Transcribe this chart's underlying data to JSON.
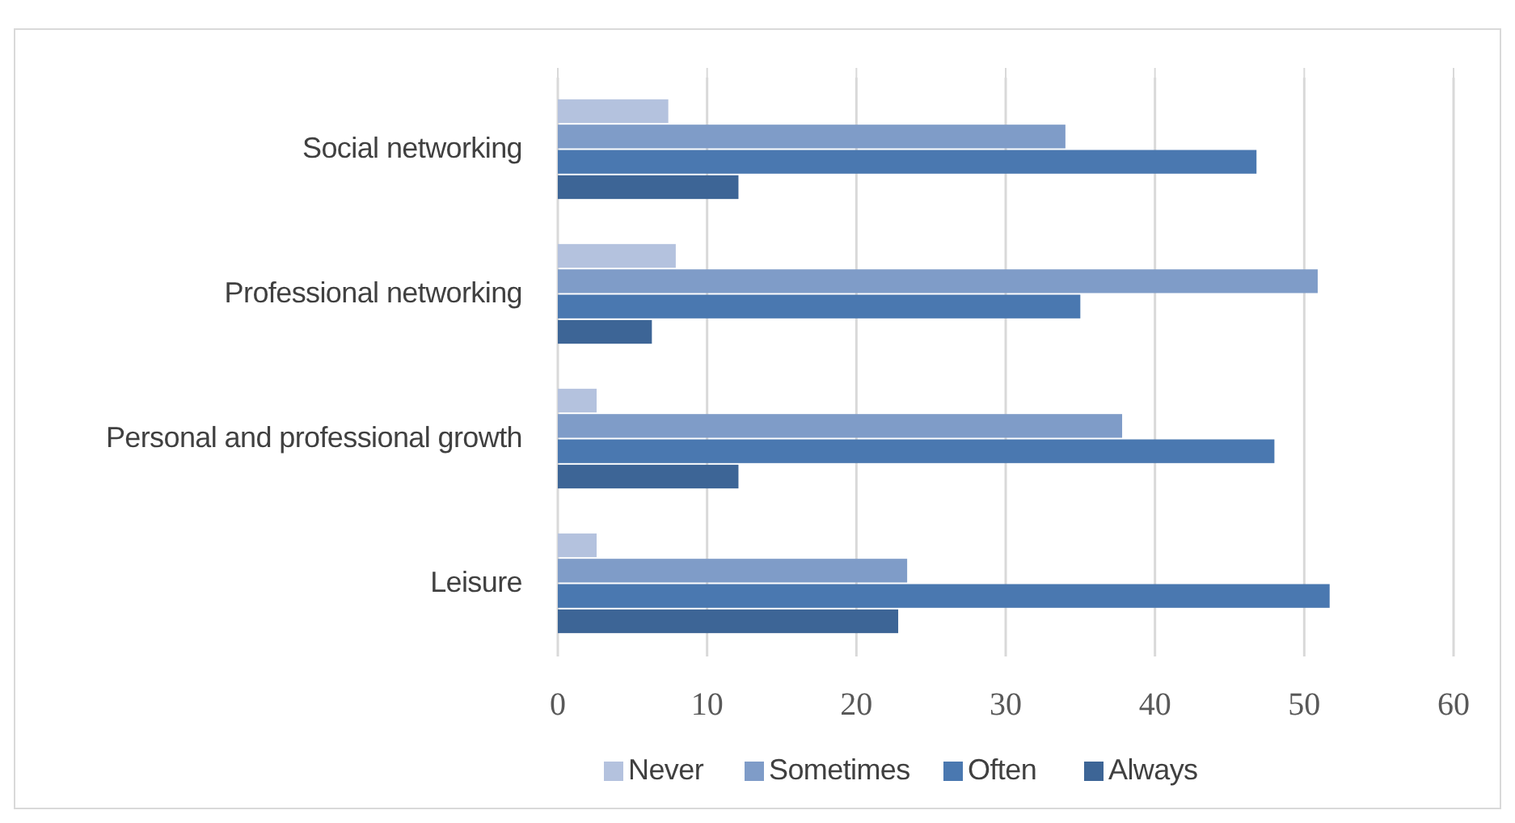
{
  "chart_data": {
    "type": "bar",
    "orientation": "horizontal",
    "categories": [
      "Social networking",
      "Professional networking",
      "Personal and professional growth",
      "Leisure"
    ],
    "series": [
      {
        "name": "Never",
        "color": "#b4c2de",
        "values": [
          7.4,
          7.9,
          2.6,
          2.6
        ]
      },
      {
        "name": "Sometimes",
        "color": "#7f9cc8",
        "values": [
          34,
          50.9,
          37.8,
          23.4
        ]
      },
      {
        "name": "Often",
        "color": "#4a78b0",
        "values": [
          46.8,
          35,
          48,
          51.7
        ]
      },
      {
        "name": "Always",
        "color": "#3d6596",
        "values": [
          12.1,
          6.3,
          12.1,
          22.8
        ]
      }
    ],
    "xlim": [
      0,
      60
    ],
    "xticks": [
      0,
      10,
      20,
      30,
      40,
      50,
      60
    ],
    "grid": "x",
    "legend": "bottom"
  }
}
